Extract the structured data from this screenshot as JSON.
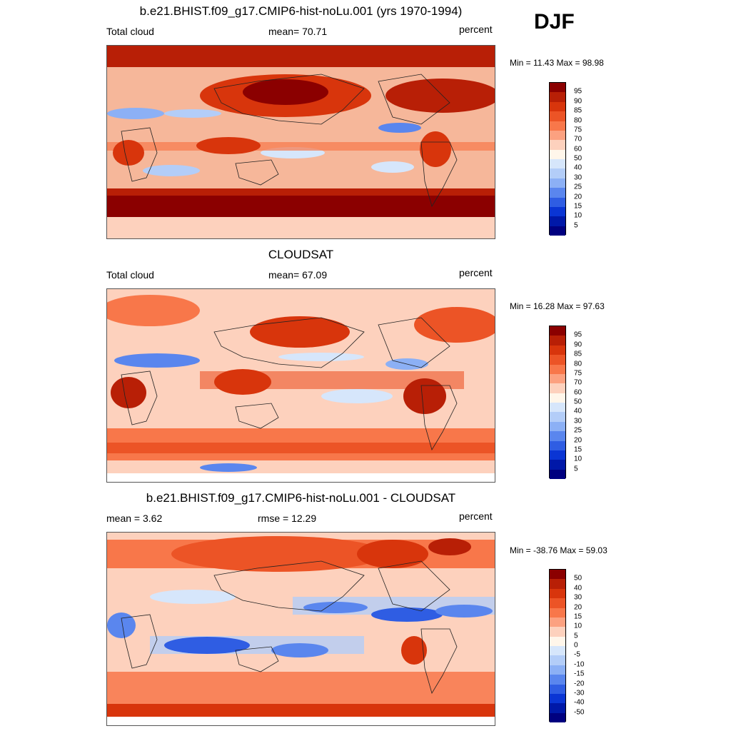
{
  "season": "DJF",
  "panels": [
    {
      "title": "b.e21.BHIST.f09_g17.CMIP6-hist-noLu.001 (yrs 1970-1994)",
      "left_label": "Total cloud",
      "center_label": "mean=  70.71",
      "right_label": "percent",
      "minmax": "Min =  11.43 Max =  98.98",
      "legend_levels": [
        "95",
        "90",
        "85",
        "80",
        "75",
        "70",
        "60",
        "50",
        "40",
        "30",
        "25",
        "20",
        "15",
        "10",
        "5"
      ]
    },
    {
      "title": "CLOUDSAT",
      "left_label": "Total cloud",
      "center_label": "mean=  67.09",
      "right_label": "percent",
      "minmax": "Min =  16.28 Max =  97.63",
      "legend_levels": [
        "95",
        "90",
        "85",
        "80",
        "75",
        "70",
        "60",
        "50",
        "40",
        "30",
        "25",
        "20",
        "15",
        "10",
        "5"
      ]
    },
    {
      "title": "b.e21.BHIST.f09_g17.CMIP6-hist-noLu.001 - CLOUDSAT",
      "left_label": "mean =   3.62",
      "center_label": "rmse =  12.29",
      "right_label": "percent",
      "minmax": "Min = -38.76 Max =  59.03",
      "legend_levels": [
        "50",
        "40",
        "30",
        "20",
        "15",
        "10",
        "5",
        "0",
        "-5",
        "-10",
        "-15",
        "-20",
        "-30",
        "-40",
        "-50"
      ]
    }
  ],
  "colors": {
    "abs_scale": [
      "#8b0000",
      "#b81f06",
      "#d8350c",
      "#ec5426",
      "#f8774a",
      "#fca180",
      "#fdd1bd",
      "#fff6ea",
      "#d6e6fb",
      "#b3cdf8",
      "#8cb0f5",
      "#5a86ee",
      "#2f5de3",
      "#0a35d4",
      "#0018a8",
      "#000080"
    ],
    "diff_scale": [
      "#8b0000",
      "#b81f06",
      "#d8350c",
      "#ec5426",
      "#f8774a",
      "#fca180",
      "#fdd1bd",
      "#fff6ea",
      "#d6e6fb",
      "#b3cdf8",
      "#8cb0f5",
      "#5a86ee",
      "#2f5de3",
      "#0a35d4",
      "#0018a8",
      "#000080"
    ]
  },
  "chart_data": [
    {
      "type": "heatmap",
      "title": "b.e21.BHIST.f09_g17.CMIP6-hist-noLu.001 (yrs 1970-1994)",
      "variable": "Total cloud",
      "units": "percent",
      "mean": 70.71,
      "min": 11.43,
      "max": 98.98,
      "contour_levels": [
        5,
        10,
        15,
        20,
        25,
        30,
        40,
        50,
        60,
        70,
        75,
        80,
        85,
        90,
        95
      ]
    },
    {
      "type": "heatmap",
      "title": "CLOUDSAT",
      "variable": "Total cloud",
      "units": "percent",
      "mean": 67.09,
      "min": 16.28,
      "max": 97.63,
      "contour_levels": [
        5,
        10,
        15,
        20,
        25,
        30,
        40,
        50,
        60,
        70,
        75,
        80,
        85,
        90,
        95
      ]
    },
    {
      "type": "heatmap",
      "title": "b.e21.BHIST.f09_g17.CMIP6-hist-noLu.001 - CLOUDSAT",
      "units": "percent",
      "mean": 3.62,
      "rmse": 12.29,
      "min": -38.76,
      "max": 59.03,
      "contour_levels": [
        -50,
        -40,
        -30,
        -20,
        -15,
        -10,
        -5,
        0,
        5,
        10,
        15,
        20,
        30,
        40,
        50
      ]
    }
  ]
}
